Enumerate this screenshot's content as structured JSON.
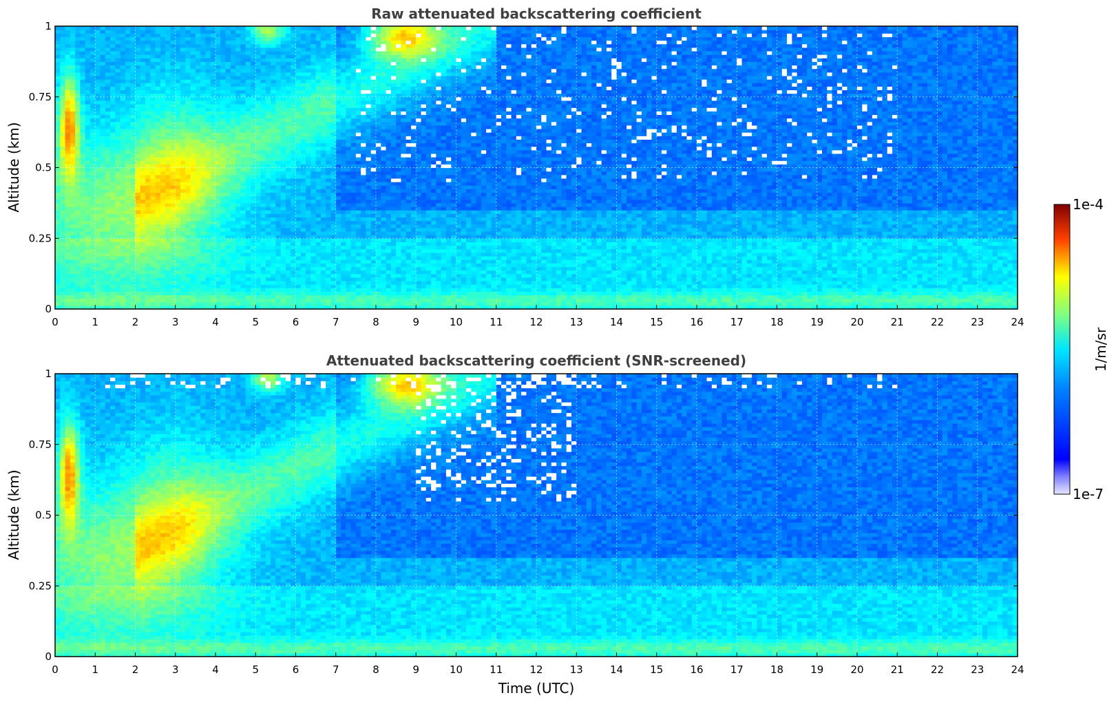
{
  "chart_data": [
    {
      "type": "heatmap",
      "title": "Raw attenuated backscattering coefficient",
      "xlabel": "",
      "ylabel": "Altitude (km)",
      "xlim": [
        0,
        24
      ],
      "ylim": [
        0,
        1
      ],
      "x_ticks": [
        "0",
        "1",
        "2",
        "3",
        "4",
        "5",
        "6",
        "7",
        "8",
        "9",
        "10",
        "11",
        "12",
        "13",
        "14",
        "15",
        "16",
        "17",
        "18",
        "19",
        "20",
        "21",
        "22",
        "23",
        "24"
      ],
      "y_ticks": [
        "0",
        "0.25",
        "0.5",
        "0.75",
        "1"
      ],
      "grid": true,
      "screened": false,
      "features": [
        {
          "description": "surface/boundary layer",
          "x_range": [
            0,
            24
          ],
          "y_range": [
            0,
            0.25
          ],
          "level": "medium"
        },
        {
          "description": "aerosol plumes",
          "x_range": [
            0,
            7
          ],
          "y_range": [
            0.25,
            0.75
          ],
          "level": "high"
        },
        {
          "description": "strong returns near top",
          "x_range": [
            5,
            11.5
          ],
          "y_range": [
            0.85,
            1.0
          ],
          "level": "very high"
        },
        {
          "description": "noisy free troposphere",
          "x_range": [
            7,
            24
          ],
          "y_range": [
            0.3,
            1.0
          ],
          "level": "low"
        }
      ]
    },
    {
      "type": "heatmap",
      "title": "Attenuated backscattering coefficient (SNR-screened)",
      "xlabel": "Time (UTC)",
      "ylabel": "Altitude (km)",
      "xlim": [
        0,
        24
      ],
      "ylim": [
        0,
        1
      ],
      "x_ticks": [
        "0",
        "1",
        "2",
        "3",
        "4",
        "5",
        "6",
        "7",
        "8",
        "9",
        "10",
        "11",
        "12",
        "13",
        "14",
        "15",
        "16",
        "17",
        "18",
        "19",
        "20",
        "21",
        "22",
        "23",
        "24"
      ],
      "y_ticks": [
        "0",
        "0.25",
        "0.5",
        "0.75",
        "1"
      ],
      "grid": true,
      "screened": true,
      "features": [
        {
          "description": "surface/boundary layer",
          "x_range": [
            0,
            24
          ],
          "y_range": [
            0,
            0.25
          ],
          "level": "medium"
        },
        {
          "description": "aerosol plumes",
          "x_range": [
            0,
            7
          ],
          "y_range": [
            0.25,
            0.75
          ],
          "level": "high"
        },
        {
          "description": "screened gaps",
          "x_range": [
            9,
            13
          ],
          "y_range": [
            0.55,
            1.0
          ],
          "level": "masked"
        }
      ]
    }
  ],
  "colorbar": {
    "label": "1/m/sr",
    "min_label": "1e-7",
    "max_label": "1e-4",
    "scale": "log",
    "colormap": "jet"
  }
}
